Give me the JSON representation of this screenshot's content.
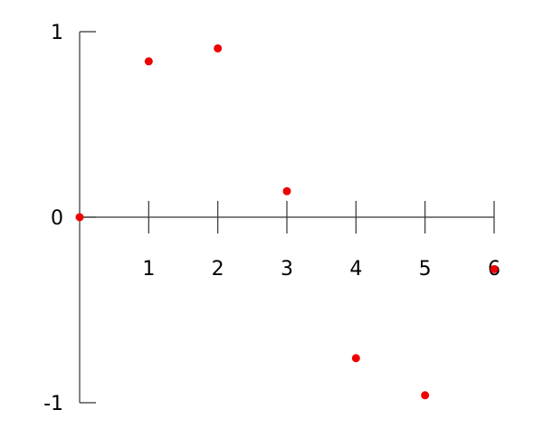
{
  "chart_data": {
    "type": "scatter",
    "x": [
      0,
      1,
      2,
      3,
      4,
      5,
      6
    ],
    "values": [
      0,
      0.84,
      0.91,
      0.14,
      -0.76,
      -0.96,
      -0.28
    ],
    "color": "#ee0000",
    "xlim": [
      0,
      6
    ],
    "ylim": [
      -1,
      1
    ],
    "xticks": [
      1,
      2,
      3,
      4,
      5,
      6
    ],
    "yticks": [
      -1,
      0,
      1
    ]
  }
}
